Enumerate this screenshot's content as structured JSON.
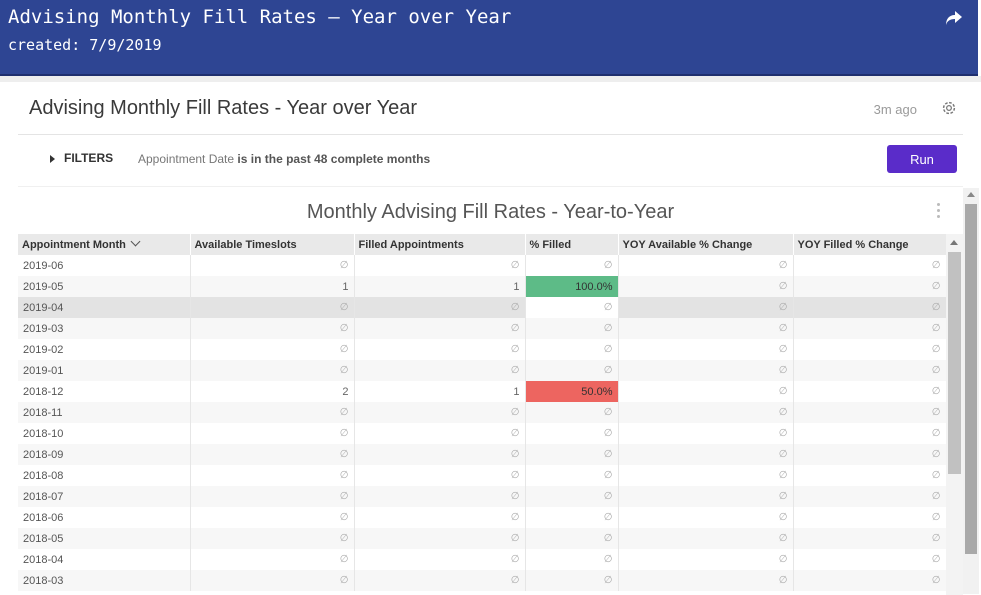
{
  "header": {
    "title": "Advising Monthly Fill Rates – Year over Year",
    "created": "created: 7/9/2019",
    "share_icon": "share-arrow-icon",
    "background": "#2e4593"
  },
  "card": {
    "title": "Advising Monthly Fill Rates - Year over Year",
    "updated": "3m ago",
    "settings_icon": "gear-icon"
  },
  "filters": {
    "label": "FILTERS",
    "field": "Appointment Date",
    "condition": "is in the past 48 complete months",
    "run_label": "Run",
    "run_color": "#5a2cc9"
  },
  "visualization": {
    "title": "Monthly Advising Fill Rates - Year-to-Year",
    "columns": [
      "Appointment Month",
      "Available Timeslots",
      "Filled Appointments",
      "% Filled",
      "YOY Available % Change",
      "YOY Filled % Change"
    ],
    "null_symbol": "∅",
    "rows": [
      {
        "month": "2019-06",
        "available": "∅",
        "filled": "∅",
        "pct": "∅",
        "yoy_avail": "∅",
        "yoy_filled": "∅"
      },
      {
        "month": "2019-05",
        "available": "1",
        "filled": "1",
        "pct": "100.0%",
        "yoy_avail": "∅",
        "yoy_filled": "∅"
      },
      {
        "month": "2019-04",
        "available": "∅",
        "filled": "∅",
        "pct": "∅",
        "yoy_avail": "∅",
        "yoy_filled": "∅"
      },
      {
        "month": "2019-03",
        "available": "∅",
        "filled": "∅",
        "pct": "∅",
        "yoy_avail": "∅",
        "yoy_filled": "∅"
      },
      {
        "month": "2019-02",
        "available": "∅",
        "filled": "∅",
        "pct": "∅",
        "yoy_avail": "∅",
        "yoy_filled": "∅"
      },
      {
        "month": "2019-01",
        "available": "∅",
        "filled": "∅",
        "pct": "∅",
        "yoy_avail": "∅",
        "yoy_filled": "∅"
      },
      {
        "month": "2018-12",
        "available": "2",
        "filled": "1",
        "pct": "50.0%",
        "yoy_avail": "∅",
        "yoy_filled": "∅"
      },
      {
        "month": "2018-11",
        "available": "∅",
        "filled": "∅",
        "pct": "∅",
        "yoy_avail": "∅",
        "yoy_filled": "∅"
      },
      {
        "month": "2018-10",
        "available": "∅",
        "filled": "∅",
        "pct": "∅",
        "yoy_avail": "∅",
        "yoy_filled": "∅"
      },
      {
        "month": "2018-09",
        "available": "∅",
        "filled": "∅",
        "pct": "∅",
        "yoy_avail": "∅",
        "yoy_filled": "∅"
      },
      {
        "month": "2018-08",
        "available": "∅",
        "filled": "∅",
        "pct": "∅",
        "yoy_avail": "∅",
        "yoy_filled": "∅"
      },
      {
        "month": "2018-07",
        "available": "∅",
        "filled": "∅",
        "pct": "∅",
        "yoy_avail": "∅",
        "yoy_filled": "∅"
      },
      {
        "month": "2018-06",
        "available": "∅",
        "filled": "∅",
        "pct": "∅",
        "yoy_avail": "∅",
        "yoy_filled": "∅"
      },
      {
        "month": "2018-05",
        "available": "∅",
        "filled": "∅",
        "pct": "∅",
        "yoy_avail": "∅",
        "yoy_filled": "∅"
      },
      {
        "month": "2018-04",
        "available": "∅",
        "filled": "∅",
        "pct": "∅",
        "yoy_avail": "∅",
        "yoy_filled": "∅"
      },
      {
        "month": "2018-03",
        "available": "∅",
        "filled": "∅",
        "pct": "∅",
        "yoy_avail": "∅",
        "yoy_filled": "∅"
      }
    ],
    "colors": {
      "high_fill": "#5dbb87",
      "low_fill": "#ed6560"
    }
  }
}
